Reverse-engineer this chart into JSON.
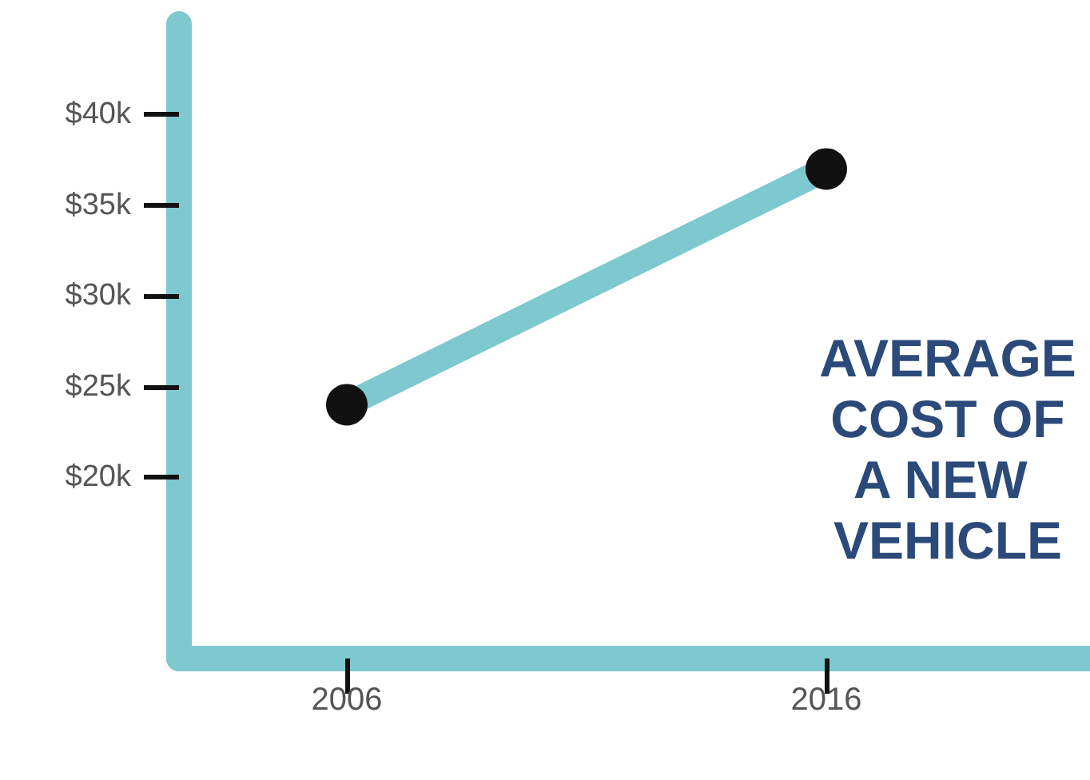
{
  "chart_data": {
    "type": "line",
    "title": "AVERAGE COST OF A NEW VEHICLE",
    "x": [
      2006,
      2016
    ],
    "series": [
      {
        "color": "#7ec8cf",
        "values": [
          24,
          37
        ]
      }
    ],
    "xlim": [
      2002.5,
      2021.5
    ],
    "xticks": [
      2006,
      2016
    ],
    "ylim": [
      10,
      45
    ],
    "yticks": [
      {
        "value": 20,
        "label": "$20k"
      },
      {
        "value": 25,
        "label": "$25k"
      },
      {
        "value": 30,
        "label": "$30k"
      },
      {
        "value": 35,
        "label": "$35k"
      },
      {
        "value": 40,
        "label": "$40k"
      }
    ],
    "grid": false,
    "marker": "circle",
    "line_style": "solid"
  }
}
